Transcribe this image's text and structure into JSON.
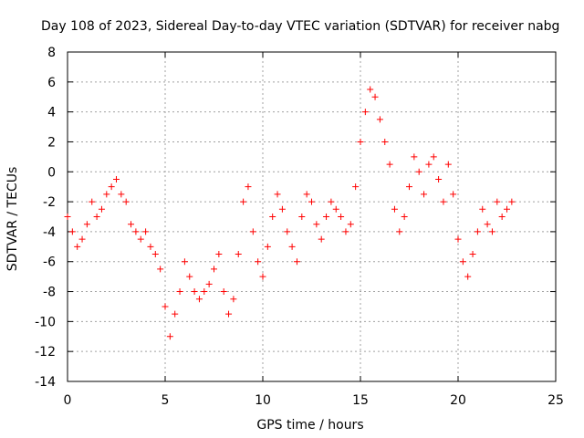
{
  "chart_data": {
    "type": "scatter",
    "title": "Day 108 of 2023, Sidereal Day-to-day VTEC variation (SDTVAR) for receiver nabg",
    "xlabel": "GPS time / hours",
    "ylabel": "SDTVAR / TECUs",
    "xlim": [
      0,
      25
    ],
    "ylim": [
      -14,
      8
    ],
    "xticks": [
      0,
      5,
      10,
      15,
      20,
      25
    ],
    "yticks": [
      -14,
      -12,
      -10,
      -8,
      -6,
      -4,
      -2,
      0,
      2,
      4,
      6,
      8
    ],
    "grid": true,
    "marker": "+",
    "color": "#ff0000",
    "series": [
      {
        "name": "SDTVAR",
        "x": [
          0.0,
          0.25,
          0.5,
          0.75,
          1.0,
          1.25,
          1.5,
          1.75,
          2.0,
          2.25,
          2.5,
          2.75,
          3.0,
          3.25,
          3.5,
          3.75,
          4.0,
          4.25,
          4.5,
          4.75,
          5.0,
          5.25,
          5.5,
          5.75,
          6.0,
          6.25,
          6.5,
          6.75,
          7.0,
          7.25,
          7.5,
          7.75,
          8.0,
          8.25,
          8.5,
          8.75,
          9.0,
          9.25,
          9.5,
          9.75,
          10.0,
          10.25,
          10.5,
          10.75,
          11.0,
          11.25,
          11.5,
          11.75,
          12.0,
          12.25,
          12.5,
          12.75,
          13.0,
          13.25,
          13.5,
          13.75,
          14.0,
          14.25,
          14.5,
          14.75,
          15.0,
          15.25,
          15.5,
          15.75,
          16.0,
          16.25,
          16.5,
          16.75,
          17.0,
          17.25,
          17.5,
          17.75,
          18.0,
          18.25,
          18.5,
          18.75,
          19.0,
          19.25,
          19.5,
          19.75,
          20.0,
          20.25,
          20.5,
          20.75,
          21.0,
          21.25,
          21.5,
          21.75,
          22.0,
          22.25,
          22.5,
          22.75
        ],
        "y": [
          -3.0,
          -4.0,
          -5.0,
          -4.5,
          -3.5,
          -2.0,
          -3.0,
          -2.5,
          -1.5,
          -1.0,
          -0.5,
          -1.5,
          -2.0,
          -3.5,
          -4.0,
          -4.5,
          -4.0,
          -5.0,
          -5.5,
          -6.5,
          -9.0,
          -11.0,
          -9.5,
          -8.0,
          -6.0,
          -7.0,
          -8.0,
          -8.5,
          -8.0,
          -7.5,
          -6.5,
          -5.5,
          -8.0,
          -9.5,
          -8.5,
          -5.5,
          -2.0,
          -1.0,
          -4.0,
          -6.0,
          -7.0,
          -5.0,
          -3.0,
          -1.5,
          -2.5,
          -4.0,
          -5.0,
          -6.0,
          -3.0,
          -1.5,
          -2.0,
          -3.5,
          -4.5,
          -3.0,
          -2.0,
          -2.5,
          -3.0,
          -4.0,
          -3.5,
          -1.0,
          2.0,
          4.0,
          5.5,
          5.0,
          3.5,
          2.0,
          0.5,
          -2.5,
          -4.0,
          -3.0,
          -1.0,
          1.0,
          0.0,
          -1.5,
          0.5,
          1.0,
          -0.5,
          -2.0,
          0.5,
          -1.5,
          -4.5,
          -6.0,
          -7.0,
          -5.5,
          -4.0,
          -2.5,
          -3.5,
          -4.0,
          -2.0,
          -3.0,
          -2.5,
          -2.0
        ]
      }
    ]
  }
}
